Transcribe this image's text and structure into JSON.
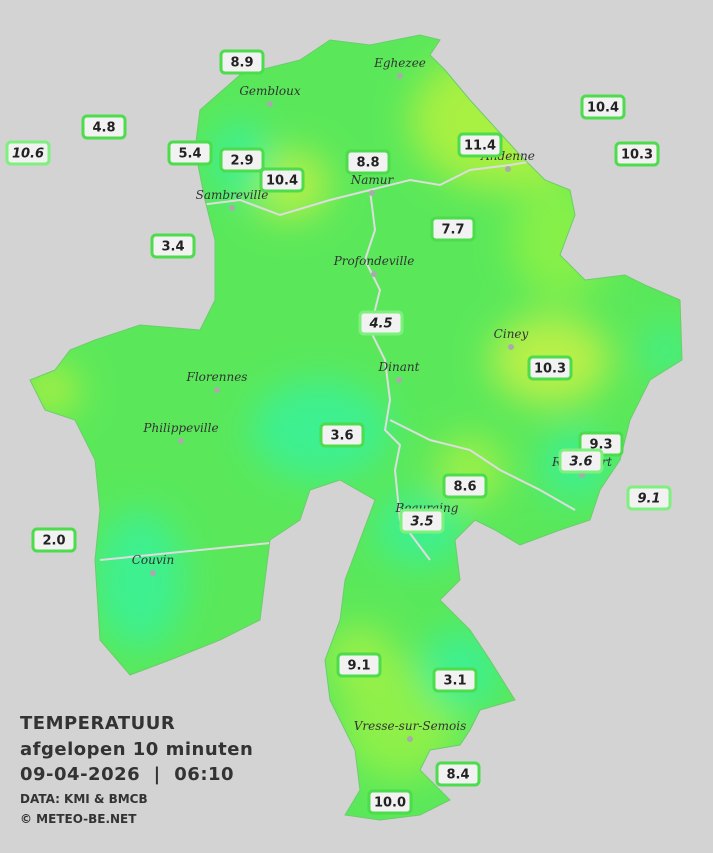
{
  "map": {
    "towns": [
      "Eghezee",
      "Gembloux",
      "Andenne",
      "Namur",
      "Sambreville",
      "Profondeville",
      "Ciney",
      "Florennes",
      "Dinant",
      "Philippeville",
      "Rochefort",
      "Beauraing",
      "Couvin",
      "Vresse-sur-Semois"
    ],
    "stations": [
      "8.9",
      "4.8",
      "10.6",
      "5.4",
      "2.9",
      "10.4",
      "8.8",
      "11.4",
      "10.4",
      "10.3",
      "3.4",
      "7.7",
      "4.5",
      "10.3",
      "3.6",
      "9.3",
      "3.6",
      "9.1",
      "8.6",
      "3.5",
      "2.0",
      "9.1",
      "3.1",
      "8.4",
      "10.0"
    ],
    "legend": {
      "title": "TEMPERATUUR",
      "subtitle": "afgelopen 10 minuten",
      "datetime": "09-04-2026  |  06:10",
      "source": "DATA: KMI & BMCB",
      "copyright": "© METEO-BE.NET"
    }
  }
}
